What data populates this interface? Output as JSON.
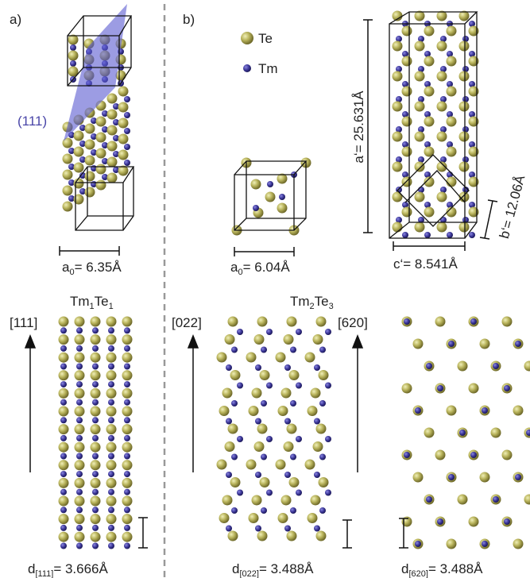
{
  "panel_a": {
    "label": "a)",
    "plane_label": "(111)",
    "lattice": {
      "base": "a",
      "sub": "0",
      "rest": "= 6.35Å"
    },
    "formula": {
      "p1": "Tm",
      "s1": "1",
      "p2": "Te",
      "s2": "1"
    },
    "direction": "[111]",
    "spacing": {
      "base": "d",
      "sub": "[111]",
      "rest": "= 3.666Å"
    }
  },
  "panel_b": {
    "label": "b)",
    "legend": [
      "Te",
      "Tm"
    ],
    "lattice": {
      "base": "a",
      "sub": "0",
      "rest": "= 6.04Å"
    },
    "cell_a": "a‘= 25.631Å",
    "cell_b": "b‘= 12.06Å",
    "cell_c": "c‘= 8.541Å",
    "formula": {
      "p1": "Tm",
      "s1": "2",
      "p2": "Te",
      "s2": "3"
    },
    "views": [
      {
        "direction": "[022]",
        "spacing": {
          "base": "d",
          "sub": "[022]",
          "rest": "= 3.488Å"
        }
      },
      {
        "direction": "[620]",
        "spacing": {
          "base": "d",
          "sub": "[620]",
          "rest": "= 3.488Å"
        }
      }
    ]
  }
}
